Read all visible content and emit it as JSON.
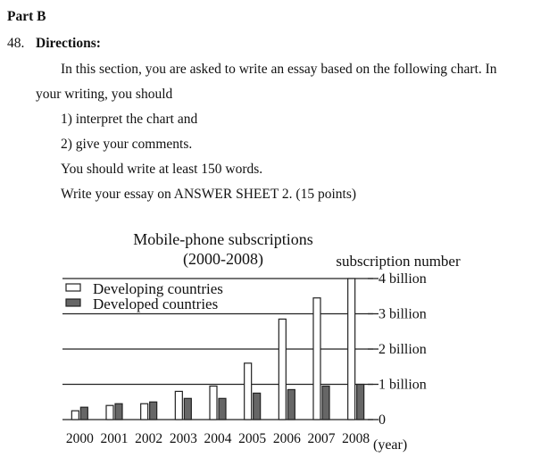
{
  "section_label": "Part B",
  "question": {
    "number": "48.",
    "heading": "Directions:",
    "intro_line1": "In this section, you are asked to write an essay based on the following chart. In",
    "intro_line2": "your writing, you should",
    "point1": "1) interpret the chart and",
    "point2": "2) give your comments.",
    "min_words": "You should write at least 150 words.",
    "answer_note": "Write your essay on ANSWER SHEET 2. (15 points)"
  },
  "chart_data": {
    "type": "bar",
    "title": "Mobile-phone subscriptions",
    "subtitle": "(2000-2008)",
    "xlabel": "(year)",
    "ylabel": "subscription number",
    "y_unit": "billion",
    "categories": [
      "2000",
      "2001",
      "2002",
      "2003",
      "2004",
      "2005",
      "2006",
      "2007",
      "2008"
    ],
    "series": [
      {
        "name": "Developing countries",
        "values": [
          0.25,
          0.4,
          0.45,
          0.8,
          0.95,
          1.6,
          2.85,
          3.45,
          4.0
        ],
        "color": "#ffffff"
      },
      {
        "name": "Developed countries",
        "values": [
          0.35,
          0.45,
          0.5,
          0.6,
          0.6,
          0.75,
          0.85,
          0.95,
          1.0
        ],
        "color": "#666666"
      }
    ],
    "ylim": [
      0,
      4
    ],
    "y_ticks": [
      {
        "value": 0,
        "label": "0"
      },
      {
        "value": 1,
        "label": "1 billion"
      },
      {
        "value": 2,
        "label": "2 billion"
      },
      {
        "value": 3,
        "label": "3 billion"
      },
      {
        "value": 4,
        "label": "4 billion"
      }
    ],
    "grid": true,
    "legend": "top-left"
  }
}
